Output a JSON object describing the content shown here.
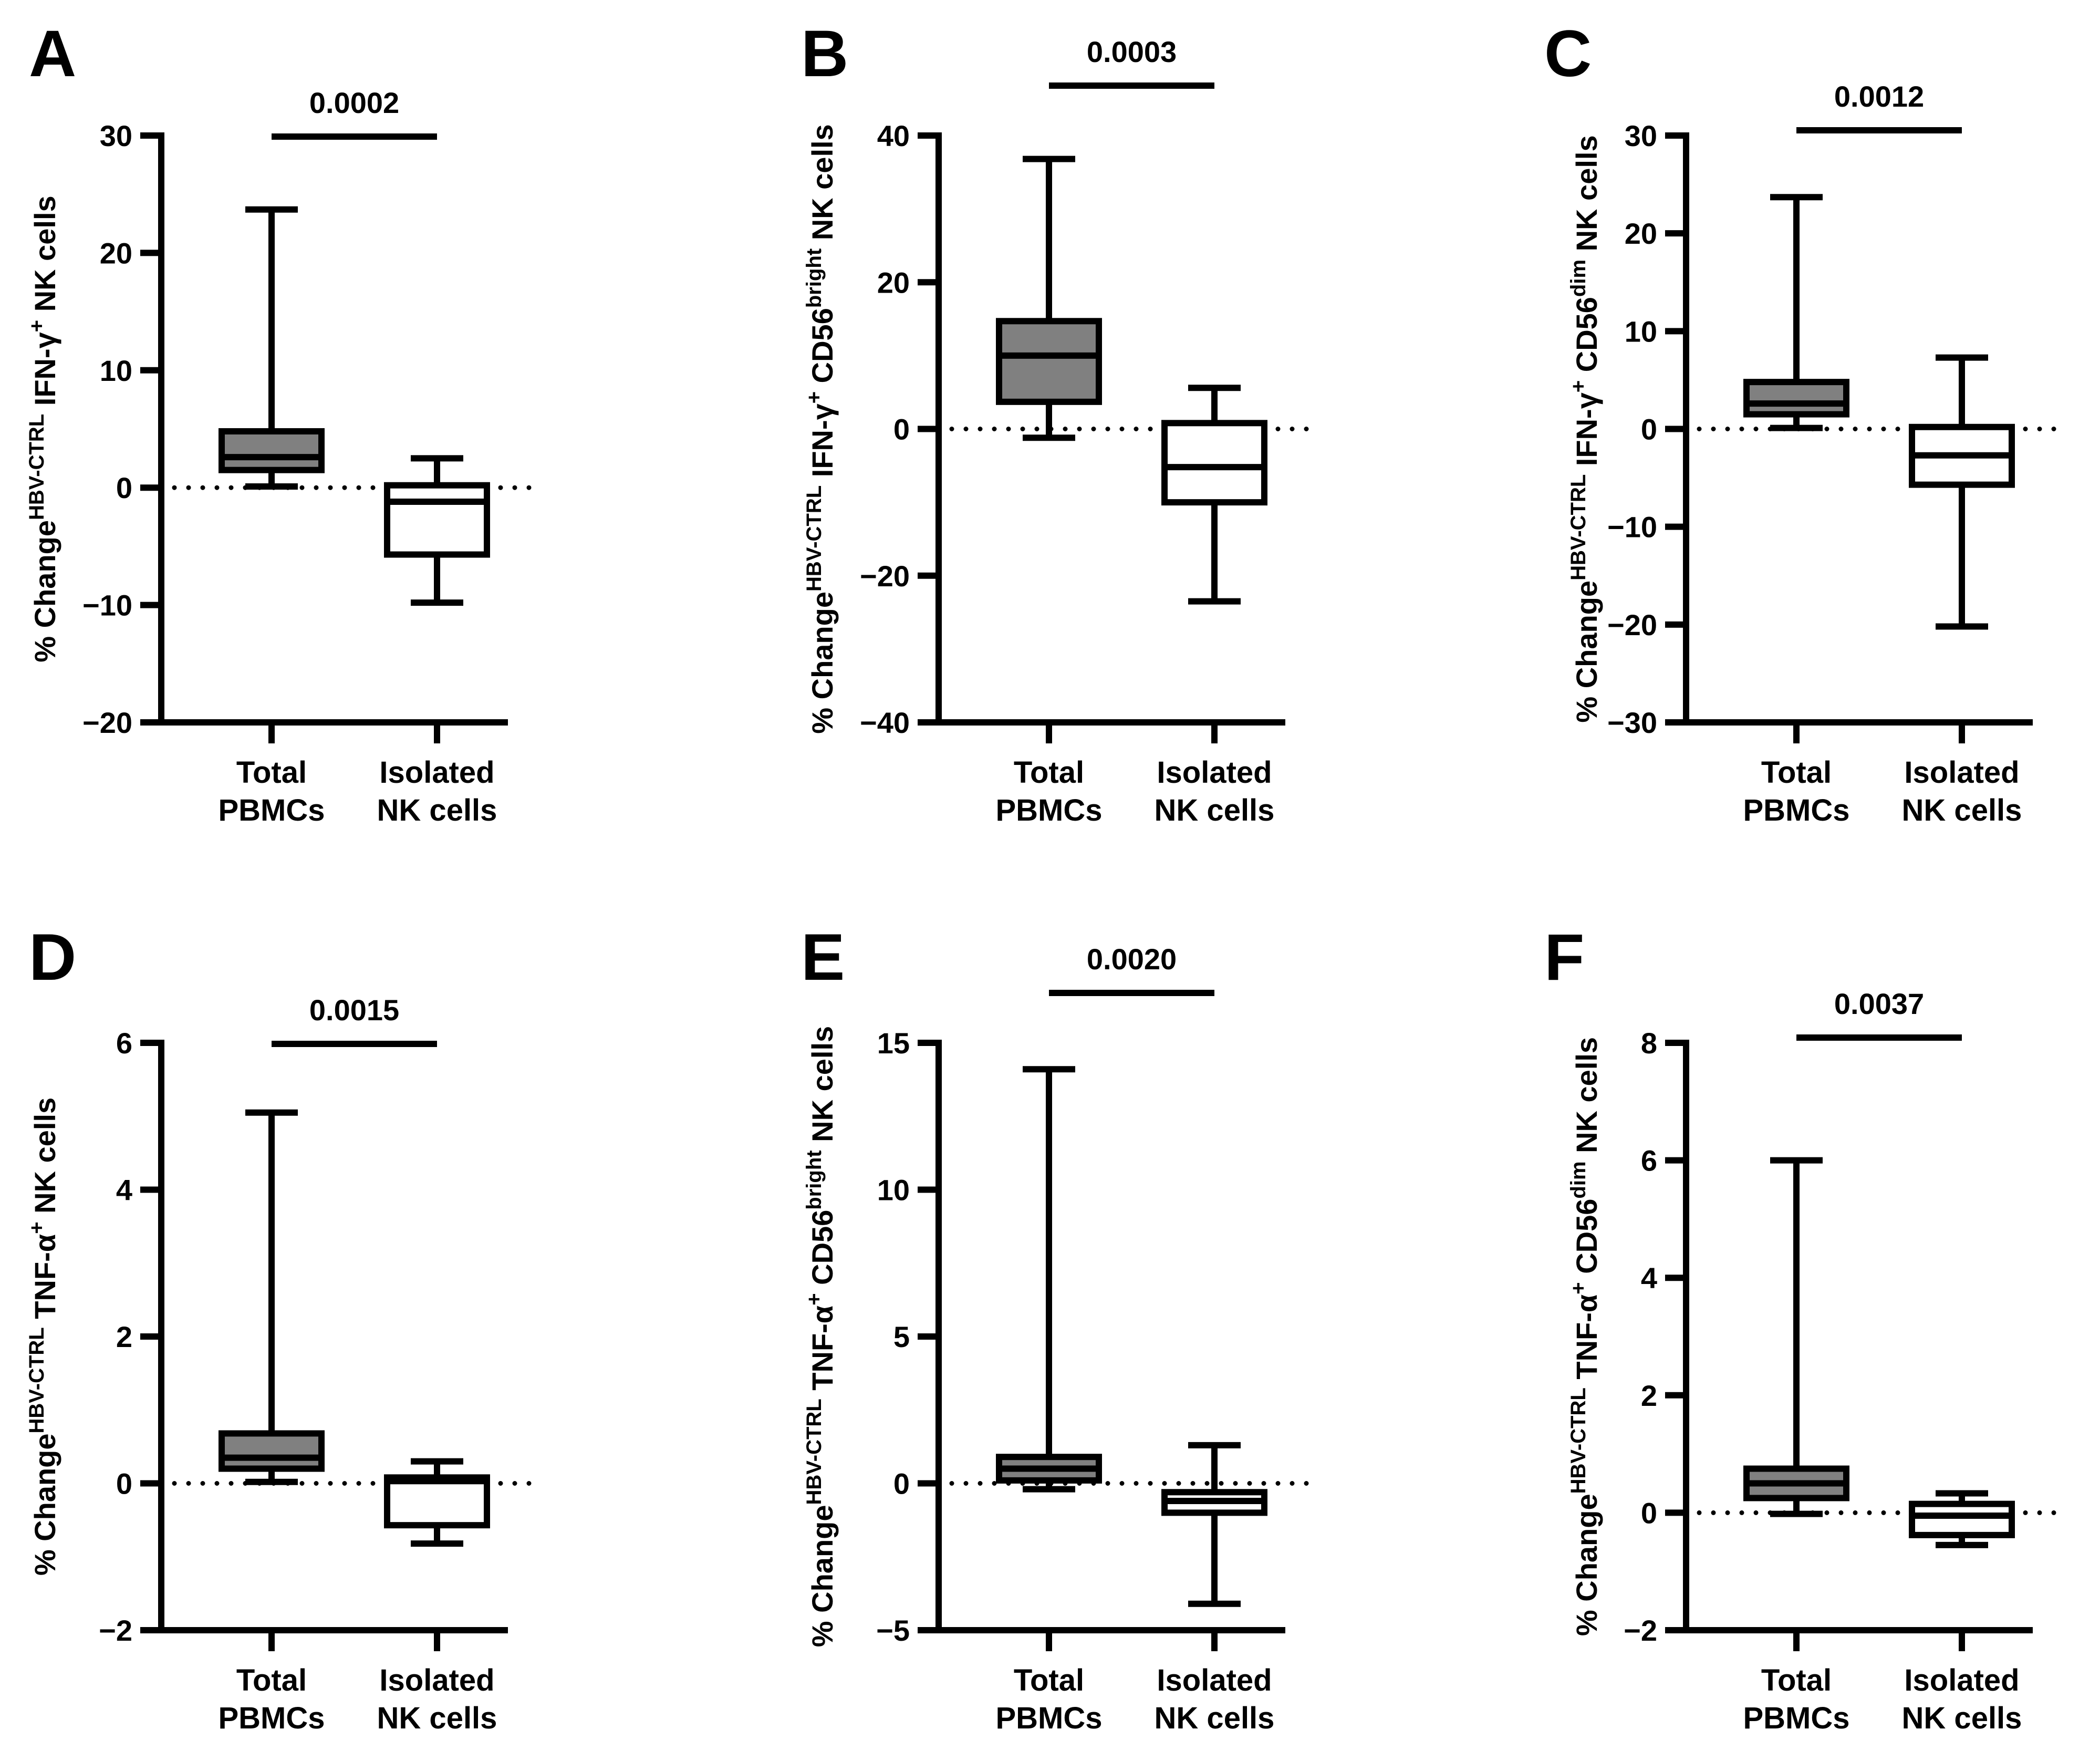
{
  "chart_data": [
    {
      "panel": "A",
      "type": "box",
      "ylabel": {
        "parts": [
          [
            "% Change",
            ""
          ],
          [
            "HBV-CTRL",
            "sup"
          ],
          [
            " IFN-γ",
            ""
          ],
          [
            "+",
            "sup"
          ],
          [
            " NK cells",
            ""
          ]
        ]
      },
      "ylim": [
        -20,
        30
      ],
      "yticks": [
        -20,
        -10,
        0,
        10,
        20,
        30
      ],
      "ytick_labels": [
        "−20",
        "−10",
        "0",
        "10",
        "20",
        "30"
      ],
      "categories": [
        [
          "Total",
          "PBMCs"
        ],
        [
          "Isolated",
          "NK cells"
        ]
      ],
      "boxes": [
        {
          "min": 0.1,
          "q1": 1.5,
          "median": 2.6,
          "q3": 4.8,
          "max": 23.7,
          "fill": "#808080"
        },
        {
          "min": -9.8,
          "q1": -5.7,
          "median": -1.2,
          "q3": 0.2,
          "max": 2.5,
          "fill": "#ffffff"
        }
      ],
      "p_value": "0.0002",
      "reference_line": 0
    },
    {
      "panel": "B",
      "type": "box",
      "ylabel": {
        "parts": [
          [
            "% Change",
            ""
          ],
          [
            "HBV-CTRL",
            "sup"
          ],
          [
            " IFN-γ",
            ""
          ],
          [
            "+",
            "sup"
          ],
          [
            " CD56",
            ""
          ],
          [
            "bright",
            "sup"
          ],
          [
            " NK cells",
            ""
          ]
        ]
      },
      "ylim": [
        -40,
        40
      ],
      "yticks": [
        -40,
        -20,
        0,
        20,
        40
      ],
      "ytick_labels": [
        "−40",
        "−20",
        "0",
        "20",
        "40"
      ],
      "categories": [
        [
          "Total",
          "PBMCs"
        ],
        [
          "Isolated",
          "NK cells"
        ]
      ],
      "boxes": [
        {
          "min": -1.2,
          "q1": 3.7,
          "median": 10.0,
          "q3": 14.7,
          "max": 36.8,
          "fill": "#808080"
        },
        {
          "min": -23.5,
          "q1": -10.0,
          "median": -5.2,
          "q3": 0.8,
          "max": 5.6,
          "fill": "#ffffff"
        }
      ],
      "p_value": "0.0003",
      "reference_line": 0
    },
    {
      "panel": "C",
      "type": "box",
      "ylabel": {
        "parts": [
          [
            "% Change",
            ""
          ],
          [
            "HBV-CTRL",
            "sup"
          ],
          [
            " IFN-γ",
            ""
          ],
          [
            "+",
            "sup"
          ],
          [
            " CD56",
            ""
          ],
          [
            "dim",
            "sup"
          ],
          [
            " NK cells",
            ""
          ]
        ]
      },
      "ylim": [
        -30,
        30
      ],
      "yticks": [
        -30,
        -20,
        -10,
        0,
        10,
        20,
        30
      ],
      "ytick_labels": [
        "−30",
        "−20",
        "−10",
        "0",
        "10",
        "20",
        "30"
      ],
      "categories": [
        [
          "Total",
          "PBMCs"
        ],
        [
          "Isolated",
          "NK cells"
        ]
      ],
      "boxes": [
        {
          "min": 0.1,
          "q1": 1.5,
          "median": 2.6,
          "q3": 4.8,
          "max": 23.7,
          "fill": "#808080"
        },
        {
          "min": -20.2,
          "q1": -5.7,
          "median": -2.7,
          "q3": 0.2,
          "max": 7.3,
          "fill": "#ffffff"
        }
      ],
      "p_value": "0.0012",
      "reference_line": 0
    },
    {
      "panel": "D",
      "type": "box",
      "ylabel": {
        "parts": [
          [
            "% Change",
            ""
          ],
          [
            "HBV-CTRL",
            "sup"
          ],
          [
            " TNF-α",
            ""
          ],
          [
            "+",
            "sup"
          ],
          [
            " NK cells",
            ""
          ]
        ]
      },
      "ylim": [
        -2,
        6
      ],
      "yticks": [
        -2,
        0,
        2,
        4,
        6
      ],
      "ytick_labels": [
        "−2",
        "0",
        "2",
        "4",
        "6"
      ],
      "categories": [
        [
          "Total",
          "PBMCs"
        ],
        [
          "Isolated",
          "NK cells"
        ]
      ],
      "boxes": [
        {
          "min": 0.02,
          "q1": 0.2,
          "median": 0.35,
          "q3": 0.68,
          "max": 5.05,
          "fill": "#808080"
        },
        {
          "min": -0.82,
          "q1": -0.57,
          "median": 0.03,
          "q3": 0.08,
          "max": 0.3,
          "fill": "#ffffff"
        }
      ],
      "p_value": "0.0015",
      "reference_line": 0
    },
    {
      "panel": "E",
      "type": "box",
      "ylabel": {
        "parts": [
          [
            "% Change",
            ""
          ],
          [
            "HBV-CTRL",
            "sup"
          ],
          [
            " TNF-α",
            ""
          ],
          [
            "+",
            "sup"
          ],
          [
            " CD56",
            ""
          ],
          [
            "bright",
            "sup"
          ],
          [
            " NK cells",
            ""
          ]
        ]
      },
      "ylim": [
        -5,
        15
      ],
      "yticks": [
        -5,
        0,
        5,
        10,
        15
      ],
      "ytick_labels": [
        "−5",
        "0",
        "5",
        "10",
        "15"
      ],
      "categories": [
        [
          "Total",
          "PBMCs"
        ],
        [
          "Isolated",
          "NK cells"
        ]
      ],
      "boxes": [
        {
          "min": -0.2,
          "q1": 0.1,
          "median": 0.5,
          "q3": 0.9,
          "max": 14.1,
          "fill": "#808080"
        },
        {
          "min": -4.1,
          "q1": -1.0,
          "median": -0.6,
          "q3": -0.3,
          "max": 1.3,
          "fill": "#ffffff"
        }
      ],
      "p_value": "0.0020",
      "reference_line": 0
    },
    {
      "panel": "F",
      "type": "box",
      "ylabel": {
        "parts": [
          [
            "% Change",
            ""
          ],
          [
            "HBV-CTRL",
            "sup"
          ],
          [
            " TNF-α",
            ""
          ],
          [
            "+",
            "sup"
          ],
          [
            " CD56",
            ""
          ],
          [
            "dim",
            "sup"
          ],
          [
            " NK cells",
            ""
          ]
        ]
      },
      "ylim": [
        -2,
        8
      ],
      "yticks": [
        -2,
        0,
        2,
        4,
        6,
        8
      ],
      "ytick_labels": [
        "−2",
        "0",
        "2",
        "4",
        "6",
        "8"
      ],
      "categories": [
        [
          "Total",
          "PBMCs"
        ],
        [
          "Isolated",
          "NK cells"
        ]
      ],
      "boxes": [
        {
          "min": -0.02,
          "q1": 0.25,
          "median": 0.5,
          "q3": 0.75,
          "max": 6.0,
          "fill": "#808080"
        },
        {
          "min": -0.55,
          "q1": -0.38,
          "median": -0.05,
          "q3": 0.15,
          "max": 0.33,
          "fill": "#ffffff"
        }
      ],
      "p_value": "0.0037",
      "reference_line": 0
    }
  ]
}
